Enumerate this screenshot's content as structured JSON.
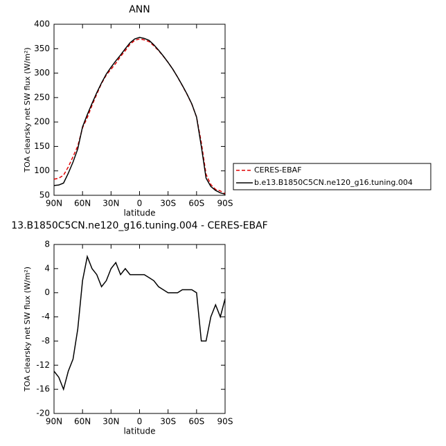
{
  "chart_data": [
    {
      "type": "line",
      "title": "ANN",
      "xlabel": "latitude",
      "ylabel": "TOA clearsky net SW flux (W/m²)",
      "x": [
        90,
        85,
        80,
        75,
        70,
        65,
        60,
        55,
        50,
        45,
        40,
        35,
        30,
        25,
        20,
        15,
        10,
        5,
        0,
        -5,
        -10,
        -15,
        -20,
        -25,
        -30,
        -35,
        -40,
        -45,
        -50,
        -55,
        -60,
        -65,
        -70,
        -75,
        -80,
        -85,
        -90
      ],
      "series": [
        {
          "name": "CERES-EBAF",
          "color": "#e00000",
          "dash": true,
          "values": [
            83,
            85,
            91,
            108,
            129,
            151,
            188,
            209,
            234,
            257,
            279,
            296,
            308,
            320,
            334,
            346,
            359,
            367,
            370,
            368,
            364.5,
            356,
            346,
            334.5,
            322,
            308,
            292,
            274.5,
            256.5,
            236.5,
            210,
            158,
            93,
            72,
            62,
            59,
            53
          ]
        },
        {
          "name": "b.e13.B1850C5CN.ne120_g16.tuning.004",
          "color": "#000000",
          "dash": false,
          "values": [
            70,
            71,
            75,
            95,
            118,
            145,
            190,
            215,
            238,
            260,
            280,
            298,
            312,
            325,
            337,
            350,
            362,
            370,
            373,
            371,
            367,
            358,
            347,
            335,
            322,
            308,
            292,
            275,
            257,
            237,
            210,
            150,
            85,
            68,
            60,
            55,
            52
          ]
        }
      ],
      "xlim": [
        90,
        -90
      ],
      "xticks": [
        {
          "value": 90,
          "label": "90N"
        },
        {
          "value": 60,
          "label": "60N"
        },
        {
          "value": 30,
          "label": "30N"
        },
        0,
        {
          "value": -30,
          "label": "30S"
        },
        {
          "value": -60,
          "label": "60S"
        },
        {
          "value": -90,
          "label": "90S"
        }
      ],
      "ylim": [
        50,
        400
      ],
      "yticks": [
        50,
        100,
        150,
        200,
        250,
        300,
        350,
        400
      ],
      "legend": true
    },
    {
      "type": "line",
      "title": "13.B1850C5CN.ne120_g16.tuning.004 - CERES-EBAF",
      "xlabel": "latitude",
      "ylabel": "TOA clearsky net SW flux (W/m²)",
      "x": [
        90,
        85,
        80,
        75,
        70,
        65,
        60,
        55,
        50,
        45,
        40,
        35,
        30,
        25,
        20,
        15,
        10,
        5,
        0,
        -5,
        -10,
        -15,
        -20,
        -25,
        -30,
        -35,
        -40,
        -45,
        -50,
        -55,
        -60,
        -65,
        -70,
        -75,
        -80,
        -85,
        -90
      ],
      "series": [
        {
          "color": "#000000",
          "dash": false,
          "values": [
            -13,
            -14,
            -16,
            -13,
            -11,
            -6,
            2,
            6,
            4,
            3,
            1,
            2,
            4,
            5,
            3,
            4,
            3,
            3,
            3,
            3,
            2.5,
            2,
            1,
            0.5,
            0,
            0,
            0,
            0.5,
            0.5,
            0.5,
            0,
            -8,
            -8,
            -4,
            -2,
            -4,
            -1
          ]
        }
      ],
      "xlim": [
        90,
        -90
      ],
      "xticks": [
        {
          "value": 90,
          "label": "90N"
        },
        {
          "value": 60,
          "label": "60N"
        },
        {
          "value": 30,
          "label": "30N"
        },
        0,
        {
          "value": -30,
          "label": "30S"
        },
        {
          "value": -60,
          "label": "60S"
        },
        {
          "value": -90,
          "label": "90S"
        }
      ],
      "ylim": [
        -20,
        8
      ],
      "yticks": [
        -20,
        -16,
        -12,
        -8,
        -4,
        0,
        4,
        8
      ],
      "legend": false
    }
  ]
}
